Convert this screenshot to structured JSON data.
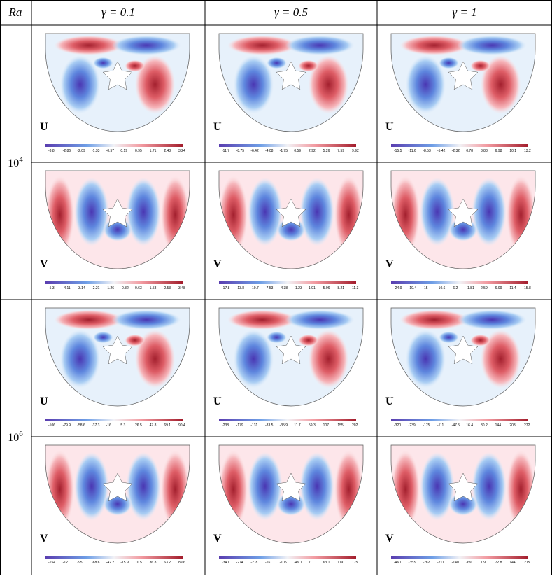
{
  "header": {
    "ra": "Ra",
    "gammas": [
      "γ = 0.1",
      "γ = 0.5",
      "γ = 1"
    ]
  },
  "rows": [
    {
      "ra_base": "10",
      "ra_exp": "4",
      "fields": [
        {
          "label": "U",
          "colorbars": [
            [
              "-3.8",
              "-2.86",
              "-2.09",
              "-1.33",
              "-0.57",
              "0.19",
              "0.95",
              "1.71",
              "2.48",
              "3.24"
            ],
            [
              "-11.7",
              "-8.75",
              "-6.42",
              "-4.08",
              "-1.75",
              "0.59",
              "2.92",
              "5.26",
              "7.59",
              "9.92"
            ],
            [
              "-15.5",
              "-11.6",
              "-8.53",
              "-5.42",
              "-2.32",
              "0.78",
              "3.88",
              "6.98",
              "10.1",
              "13.2"
            ]
          ]
        },
        {
          "label": "V",
          "colorbars": [
            [
              "-5.3",
              "-4.11",
              "-3.14",
              "-2.21",
              "-1.26",
              "-0.32",
              "0.63",
              "1.58",
              "2.53",
              "3.48"
            ],
            [
              "-17.8",
              "-13.8",
              "-10.7",
              "-7.53",
              "-4.38",
              "-1.23",
              "1.91",
              "5.06",
              "8.21",
              "11.3"
            ],
            [
              "-24.9",
              "-19.4",
              "-15",
              "-10.6",
              "-6.2",
              "-1.81",
              "2.59",
              "6.99",
              "11.4",
              "15.8"
            ]
          ]
        }
      ]
    },
    {
      "ra_base": "10",
      "ra_exp": "6",
      "fields": [
        {
          "label": "U",
          "colorbars": [
            [
              "-106",
              "-79.9",
              "-58.6",
              "-37.3",
              "-16",
              "5.3",
              "26.5",
              "47.8",
              "69.1",
              "90.4"
            ],
            [
              "-238",
              "-179",
              "-131",
              "-83.5",
              "-35.9",
              "11.7",
              "59.3",
              "107",
              "155",
              "202"
            ],
            [
              "-320",
              "-239",
              "-175",
              "-111",
              "-47.5",
              "16.4",
              "80.2",
              "144",
              "208",
              "272"
            ]
          ]
        },
        {
          "label": "V",
          "colorbars": [
            [
              "-154",
              "-121",
              "-95",
              "-68.6",
              "-42.2",
              "-15.9",
              "10.5",
              "36.8",
              "63.2",
              "89.6"
            ],
            [
              "-340",
              "-274",
              "-218",
              "-161",
              "-105",
              "-49.1",
              "7",
              "63.1",
              "119",
              "175"
            ],
            [
              "-460",
              "-353",
              "-282",
              "-211",
              "-140",
              "-69",
              "1.9",
              "72.8",
              "144",
              "215"
            ]
          ]
        }
      ]
    }
  ]
}
